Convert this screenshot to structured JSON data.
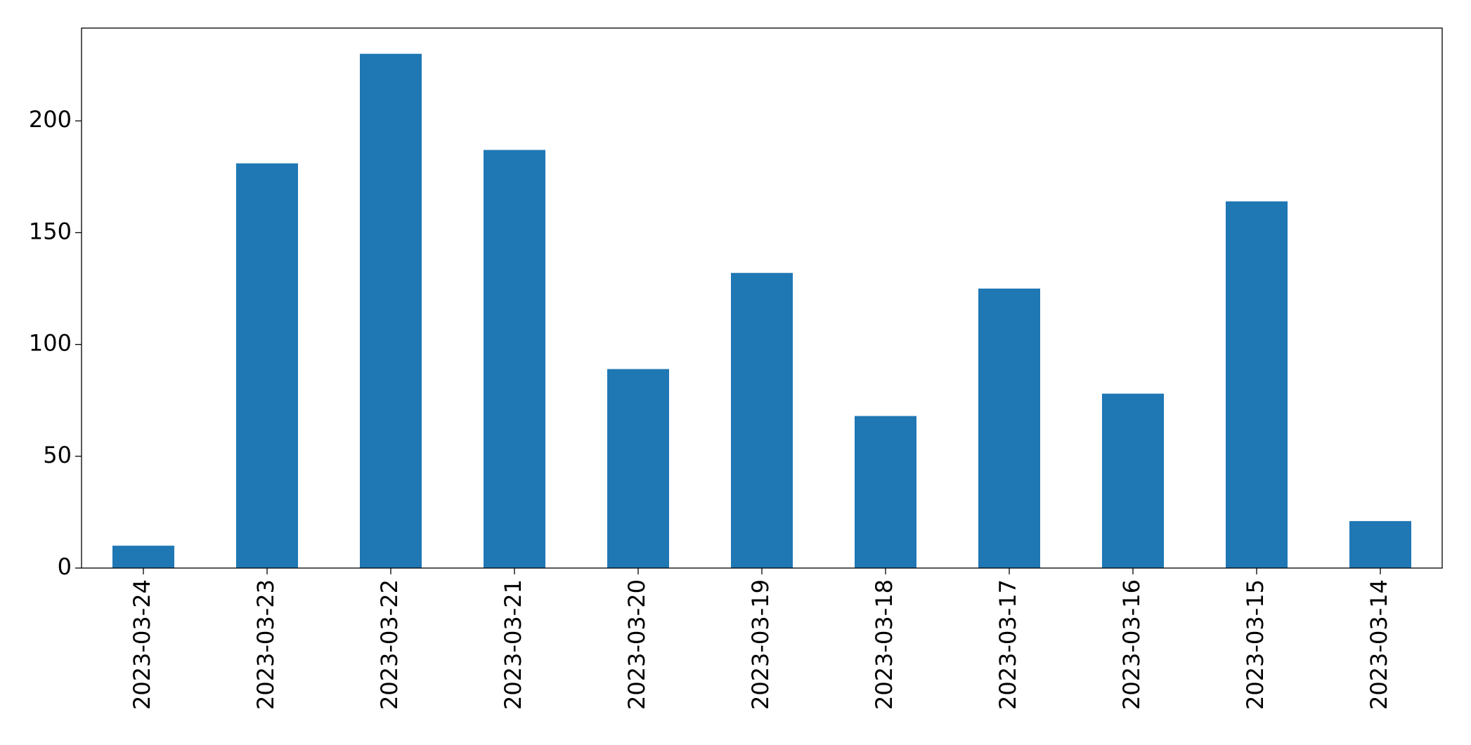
{
  "chart_data": {
    "type": "bar",
    "categories": [
      "2023-03-24",
      "2023-03-23",
      "2023-03-22",
      "2023-03-21",
      "2023-03-20",
      "2023-03-19",
      "2023-03-18",
      "2023-03-17",
      "2023-03-16",
      "2023-03-15",
      "2023-03-14"
    ],
    "values": [
      10,
      181,
      230,
      187,
      89,
      132,
      68,
      125,
      78,
      164,
      21
    ],
    "color": "#1f77b4",
    "ylim": [
      0,
      241.5
    ],
    "yticks": [
      0,
      50,
      100,
      150,
      200
    ],
    "grid": false
  }
}
